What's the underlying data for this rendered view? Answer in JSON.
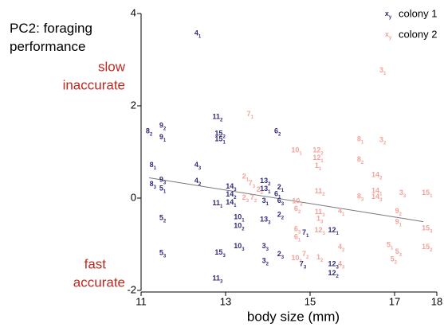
{
  "chart_data": {
    "type": "scatter",
    "title": "PC2: foraging performance",
    "annotations": {
      "top": "slow inaccurate",
      "bottom": "fast accurate"
    },
    "xlabel": "body size (mm)",
    "xlim": [
      11,
      18
    ],
    "xticks": [
      11,
      13,
      15,
      17,
      18
    ],
    "ylim": [
      -2,
      4
    ],
    "yticks": [
      -2,
      0,
      2,
      4
    ],
    "legend": {
      "position": "upper right",
      "marker": "x",
      "marker_sub": "y"
    },
    "trend": {
      "color": "#777777",
      "x": [
        11.19,
        17.68
      ],
      "y": [
        0.44,
        -0.51
      ]
    },
    "series": [
      {
        "name": "colony 1",
        "color": "#2e2a7a",
        "points": [
          {
            "x": 12.34,
            "y": 3.56,
            "label": "4",
            "sub": "1"
          },
          {
            "x": 12.81,
            "y": 1.75,
            "label": "11",
            "sub": "2"
          },
          {
            "x": 12.87,
            "y": 1.39,
            "label": "15",
            "sub": "2"
          },
          {
            "x": 12.87,
            "y": 1.27,
            "label": "15",
            "sub": "1"
          },
          {
            "x": 14.23,
            "y": 1.44,
            "label": "6",
            "sub": "2"
          },
          {
            "x": 11.19,
            "y": 1.44,
            "label": "8",
            "sub": "2"
          },
          {
            "x": 11.51,
            "y": 1.56,
            "label": "9",
            "sub": "2"
          },
          {
            "x": 11.51,
            "y": 1.31,
            "label": "9",
            "sub": "1"
          },
          {
            "x": 11.28,
            "y": 0.71,
            "label": "8",
            "sub": "1"
          },
          {
            "x": 12.34,
            "y": 0.71,
            "label": "4",
            "sub": "3"
          },
          {
            "x": 12.34,
            "y": 0.36,
            "label": "4",
            "sub": "2"
          },
          {
            "x": 11.51,
            "y": 0.39,
            "label": "9",
            "sub": "3"
          },
          {
            "x": 11.28,
            "y": 0.29,
            "label": "8",
            "sub": "3"
          },
          {
            "x": 11.51,
            "y": 0.2,
            "label": "5",
            "sub": "1"
          },
          {
            "x": 13.13,
            "y": 0.24,
            "label": "14",
            "sub": "3"
          },
          {
            "x": 13.13,
            "y": 0.07,
            "label": "14",
            "sub": "2"
          },
          {
            "x": 12.81,
            "y": -0.12,
            "label": "11",
            "sub": "1"
          },
          {
            "x": 13.13,
            "y": -0.1,
            "label": "14",
            "sub": "1"
          },
          {
            "x": 13.94,
            "y": 0.36,
            "label": "13",
            "sub": "2"
          },
          {
            "x": 13.94,
            "y": 0.19,
            "label": "13",
            "sub": "1"
          },
          {
            "x": 14.3,
            "y": 0.22,
            "label": "2",
            "sub": "1"
          },
          {
            "x": 14.23,
            "y": 0.08,
            "label": "6",
            "sub": "1"
          },
          {
            "x": 13.94,
            "y": -0.07,
            "label": "3",
            "sub": "1"
          },
          {
            "x": 14.3,
            "y": -0.07,
            "label": "6",
            "sub": "3"
          },
          {
            "x": 11.51,
            "y": -0.44,
            "label": "5",
            "sub": "2"
          },
          {
            "x": 13.32,
            "y": -0.42,
            "label": "10",
            "sub": "1"
          },
          {
            "x": 13.32,
            "y": -0.61,
            "label": "10",
            "sub": "2"
          },
          {
            "x": 13.94,
            "y": -0.47,
            "label": "13",
            "sub": "3"
          },
          {
            "x": 14.3,
            "y": -0.37,
            "label": "2",
            "sub": "2"
          },
          {
            "x": 13.32,
            "y": -1.05,
            "label": "10",
            "sub": "3"
          },
          {
            "x": 13.94,
            "y": -1.05,
            "label": "3",
            "sub": "3"
          },
          {
            "x": 14.89,
            "y": -0.76,
            "label": "7",
            "sub": "1"
          },
          {
            "x": 15.55,
            "y": -0.71,
            "label": "12",
            "sub": "1"
          },
          {
            "x": 11.51,
            "y": -1.2,
            "label": "5",
            "sub": "3"
          },
          {
            "x": 12.87,
            "y": -1.19,
            "label": "15",
            "sub": "3"
          },
          {
            "x": 14.3,
            "y": -1.22,
            "label": "2",
            "sub": "3"
          },
          {
            "x": 13.94,
            "y": -1.37,
            "label": "3",
            "sub": "2"
          },
          {
            "x": 14.83,
            "y": -1.44,
            "label": "7",
            "sub": "3"
          },
          {
            "x": 15.55,
            "y": -1.44,
            "label": "12",
            "sub": "3"
          },
          {
            "x": 15.55,
            "y": -1.64,
            "label": "12",
            "sub": "2"
          },
          {
            "x": 12.81,
            "y": -1.75,
            "label": "11",
            "sub": "3"
          }
        ]
      },
      {
        "name": "colony 2",
        "color": "#f4a29a",
        "points": [
          {
            "x": 16.72,
            "y": 2.76,
            "label": "3",
            "sub": "1"
          },
          {
            "x": 13.58,
            "y": 1.81,
            "label": "7",
            "sub": "1"
          },
          {
            "x": 14.68,
            "y": 1.03,
            "label": "10",
            "sub": "1"
          },
          {
            "x": 15.19,
            "y": 1.03,
            "label": "12",
            "sub": "2"
          },
          {
            "x": 15.19,
            "y": 0.86,
            "label": "12",
            "sub": "1"
          },
          {
            "x": 15.19,
            "y": 0.69,
            "label": "1",
            "sub": "1"
          },
          {
            "x": 16.19,
            "y": 1.27,
            "label": "8",
            "sub": "1"
          },
          {
            "x": 16.72,
            "y": 1.25,
            "label": "3",
            "sub": "2"
          },
          {
            "x": 16.19,
            "y": 0.83,
            "label": "8",
            "sub": "2"
          },
          {
            "x": 16.58,
            "y": 0.49,
            "label": "14",
            "sub": "2"
          },
          {
            "x": 13.47,
            "y": 0.46,
            "label": "2",
            "sub": "1"
          },
          {
            "x": 13.62,
            "y": 0.31,
            "label": "7",
            "sub": "3"
          },
          {
            "x": 13.81,
            "y": 0.17,
            "label": "2",
            "sub": "2"
          },
          {
            "x": 13.47,
            "y": 0,
            "label": "2",
            "sub": "3"
          },
          {
            "x": 13.66,
            "y": 0,
            "label": "7",
            "sub": "2"
          },
          {
            "x": 15.23,
            "y": 0.14,
            "label": "11",
            "sub": "2"
          },
          {
            "x": 16.58,
            "y": 0.15,
            "label": "14",
            "sub": "1"
          },
          {
            "x": 16.58,
            "y": 0.02,
            "label": "14",
            "sub": "3"
          },
          {
            "x": 16.19,
            "y": 0.03,
            "label": "8",
            "sub": "3"
          },
          {
            "x": 17.19,
            "y": 0.1,
            "label": "3",
            "sub": "3"
          },
          {
            "x": 17.77,
            "y": 0.1,
            "label": "15",
            "sub": "1"
          },
          {
            "x": 14.7,
            "y": -0.08,
            "label": "10",
            "sub": "2"
          },
          {
            "x": 14.7,
            "y": -0.24,
            "label": "6",
            "sub": "2"
          },
          {
            "x": 15.23,
            "y": -0.31,
            "label": "11",
            "sub": "3"
          },
          {
            "x": 15.23,
            "y": -0.46,
            "label": "1",
            "sub": "3"
          },
          {
            "x": 15.74,
            "y": -0.29,
            "label": "4",
            "sub": "1"
          },
          {
            "x": 17.09,
            "y": -0.29,
            "label": "9",
            "sub": "2"
          },
          {
            "x": 17.09,
            "y": -0.53,
            "label": "9",
            "sub": "1"
          },
          {
            "x": 17.77,
            "y": -0.66,
            "label": "15",
            "sub": "3"
          },
          {
            "x": 14.7,
            "y": -0.68,
            "label": "6",
            "sub": "3"
          },
          {
            "x": 14.7,
            "y": -0.85,
            "label": "6",
            "sub": "1"
          },
          {
            "x": 15.23,
            "y": -0.71,
            "label": "12",
            "sub": "3"
          },
          {
            "x": 15.74,
            "y": -1.07,
            "label": "4",
            "sub": "2"
          },
          {
            "x": 16.89,
            "y": -1.03,
            "label": "5",
            "sub": "1"
          },
          {
            "x": 17.09,
            "y": -1.17,
            "label": "5",
            "sub": "3"
          },
          {
            "x": 16.98,
            "y": -1.34,
            "label": "5",
            "sub": "2"
          },
          {
            "x": 17.77,
            "y": -1.07,
            "label": "15",
            "sub": "2"
          },
          {
            "x": 14.68,
            "y": -1.31,
            "label": "10",
            "sub": "3"
          },
          {
            "x": 14.89,
            "y": -1.22,
            "label": "7",
            "sub": "2"
          },
          {
            "x": 15.23,
            "y": -1.29,
            "label": "1",
            "sub": "2"
          },
          {
            "x": 15.74,
            "y": -1.44,
            "label": "4",
            "sub": "3"
          }
        ]
      }
    ]
  }
}
